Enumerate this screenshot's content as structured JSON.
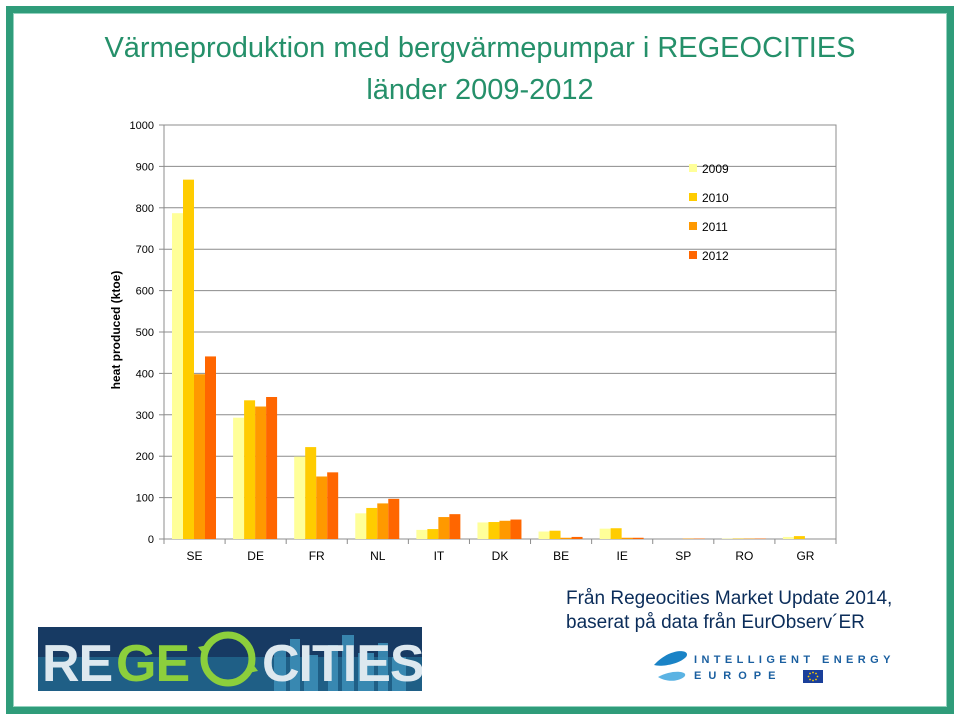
{
  "title_line1": "Värmeproduktion med bergvärmepumpar i REGEOCITIES",
  "title_line2": "länder 2009-2012",
  "source_line1": "Från Regeocities Market Update 2014,",
  "source_line2": "baserat på data från EurObserv´ER",
  "logo_left_text": "REGEOCITIES",
  "logo_right_text_1": "INTELLIGENT ENERGY",
  "logo_right_text_2": "EUROPE",
  "colors": {
    "2009": "#ffff99",
    "2010": "#ffcc00",
    "2011": "#ff9900",
    "2012": "#ff6600",
    "frame": "#2f9c7a",
    "title": "#25906a"
  },
  "chart_data": {
    "type": "bar",
    "ylabel": "heat produced (ktoe)",
    "xlabel": "",
    "ylim": [
      0,
      1000
    ],
    "yticks": [
      0,
      100,
      200,
      300,
      400,
      500,
      600,
      700,
      800,
      900,
      1000
    ],
    "categories": [
      "SE",
      "DE",
      "FR",
      "NL",
      "IT",
      "DK",
      "BE",
      "IE",
      "SP",
      "RO",
      "GR"
    ],
    "series": [
      {
        "name": "2009",
        "values": [
          787,
          293,
          199,
          62,
          22,
          40,
          18,
          25,
          0,
          1,
          5
        ]
      },
      {
        "name": "2010",
        "values": [
          868,
          335,
          222,
          75,
          24,
          41,
          20,
          26,
          0,
          1,
          7
        ]
      },
      {
        "name": "2011",
        "values": [
          398,
          320,
          151,
          86,
          53,
          44,
          3,
          3,
          1,
          1,
          0
        ]
      },
      {
        "name": "2012",
        "values": [
          441,
          343,
          161,
          97,
          60,
          47,
          5,
          3,
          1,
          1,
          0
        ]
      }
    ],
    "legend": "top-right",
    "grid": true
  }
}
